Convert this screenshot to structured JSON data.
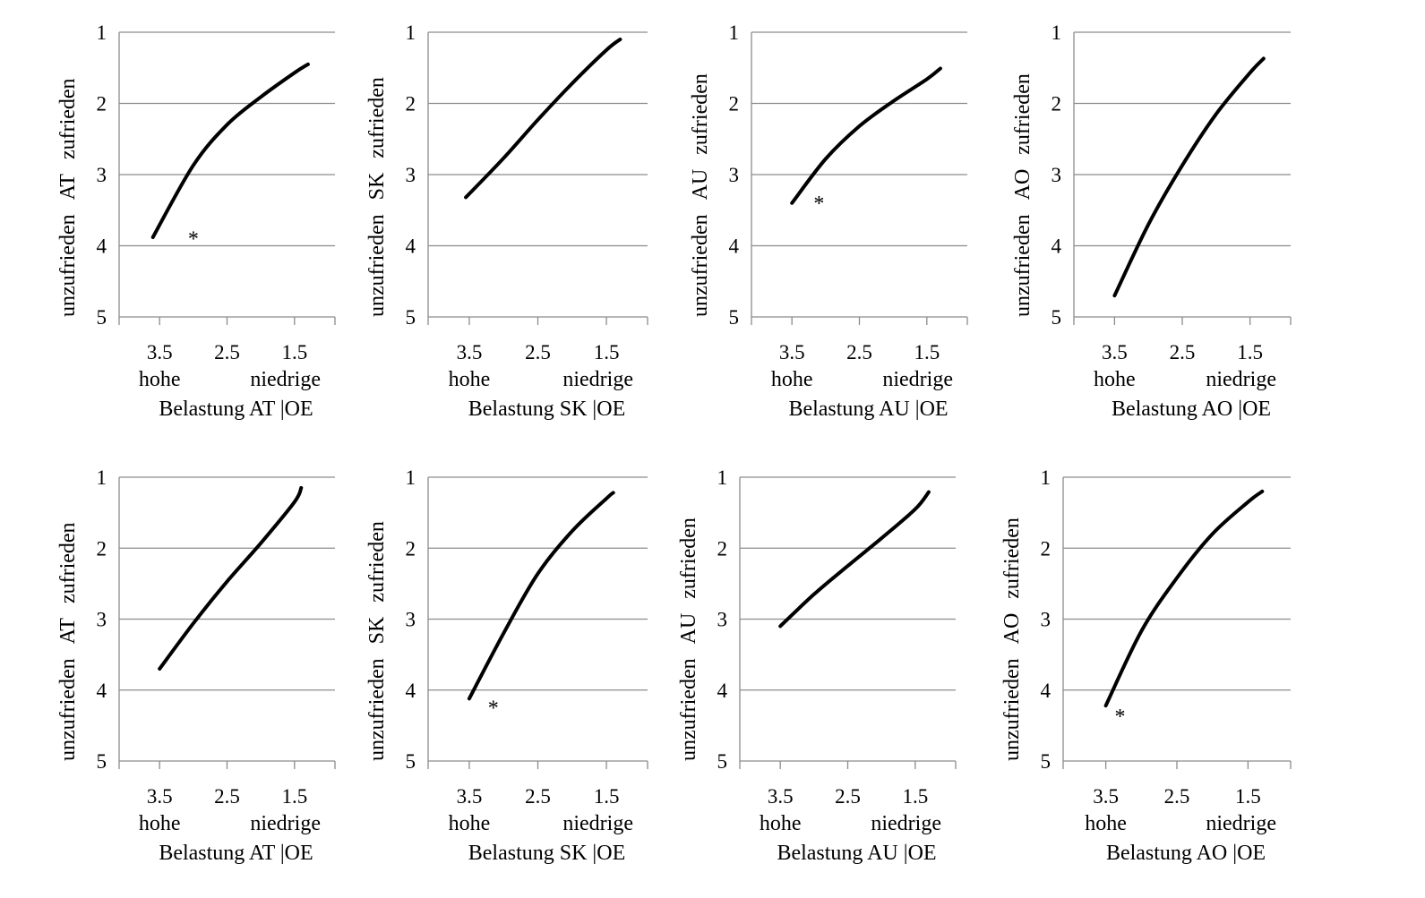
{
  "chart_data": [
    {
      "type": "line",
      "x": [
        3.6,
        3.0,
        2.5,
        2.0,
        1.5,
        1.3
      ],
      "y": [
        3.88,
        2.87,
        2.3,
        1.91,
        1.57,
        1.45
      ],
      "xticks": [
        "3.5",
        "2.5",
        "1.5"
      ],
      "xtick_values": [
        3.5,
        2.5,
        1.5
      ],
      "xlim": [
        4.1,
        0.9
      ],
      "yticks": [
        "1",
        "2",
        "3",
        "4",
        "5"
      ],
      "ylim": [
        1,
        5
      ],
      "y_inverted": true,
      "x_reversed": true,
      "x_end_left": "hohe",
      "x_end_right": "niedrige",
      "xlabel": "Belastung AT |OE",
      "ylabel_low": "unzufrieden",
      "ylabel_mid": "AT",
      "ylabel_high": "zufrieden",
      "annotation": {
        "text": "*",
        "x": 3.0,
        "y": 3.85
      }
    },
    {
      "type": "line",
      "x": [
        3.55,
        3.0,
        2.5,
        2.0,
        1.5,
        1.3
      ],
      "y": [
        3.32,
        2.77,
        2.23,
        1.72,
        1.25,
        1.1
      ],
      "xticks": [
        "3.5",
        "2.5",
        "1.5"
      ],
      "xtick_values": [
        3.5,
        2.5,
        1.5
      ],
      "xlim": [
        4.1,
        0.9
      ],
      "yticks": [
        "1",
        "2",
        "3",
        "4",
        "5"
      ],
      "ylim": [
        1,
        5
      ],
      "y_inverted": true,
      "x_reversed": true,
      "x_end_left": "hohe",
      "x_end_right": "niedrige",
      "xlabel": "Belastung SK |OE",
      "ylabel_low": "unzufrieden",
      "ylabel_mid": "SK",
      "ylabel_high": "zufrieden",
      "annotation": null
    },
    {
      "type": "line",
      "x": [
        3.5,
        3.0,
        2.5,
        2.0,
        1.5,
        1.3
      ],
      "y": [
        3.4,
        2.78,
        2.32,
        1.97,
        1.66,
        1.51
      ],
      "xticks": [
        "3.5",
        "2.5",
        "1.5"
      ],
      "xtick_values": [
        3.5,
        2.5,
        1.5
      ],
      "xlim": [
        4.1,
        0.9
      ],
      "yticks": [
        "1",
        "2",
        "3",
        "4",
        "5"
      ],
      "ylim": [
        1,
        5
      ],
      "y_inverted": true,
      "x_reversed": true,
      "x_end_left": "hohe",
      "x_end_right": "niedrige",
      "xlabel": "Belastung AU |OE",
      "ylabel_low": "unzufrieden",
      "ylabel_mid": "AU",
      "ylabel_high": "zufrieden",
      "annotation": {
        "text": "*",
        "x": 3.1,
        "y": 3.35
      }
    },
    {
      "type": "line",
      "x": [
        3.5,
        3.0,
        2.5,
        2.0,
        1.5,
        1.3
      ],
      "y": [
        4.7,
        3.7,
        2.87,
        2.15,
        1.57,
        1.37
      ],
      "xticks": [
        "3.5",
        "2.5",
        "1.5"
      ],
      "xtick_values": [
        3.5,
        2.5,
        1.5
      ],
      "xlim": [
        4.1,
        0.9
      ],
      "yticks": [
        "1",
        "2",
        "3",
        "4",
        "5"
      ],
      "ylim": [
        1,
        5
      ],
      "y_inverted": true,
      "x_reversed": true,
      "x_end_left": "hohe",
      "x_end_right": "niedrige",
      "xlabel": "Belastung AO |OE",
      "ylabel_low": "unzufrieden",
      "ylabel_mid": "AO",
      "ylabel_high": "zufrieden",
      "annotation": null
    },
    {
      "type": "line",
      "x": [
        3.5,
        3.0,
        2.5,
        2.0,
        1.5,
        1.4
      ],
      "y": [
        3.7,
        3.06,
        2.47,
        1.93,
        1.35,
        1.15
      ],
      "xticks": [
        "3.5",
        "2.5",
        "1.5"
      ],
      "xtick_values": [
        3.5,
        2.5,
        1.5
      ],
      "xlim": [
        4.1,
        0.9
      ],
      "yticks": [
        "1",
        "2",
        "3",
        "4",
        "5"
      ],
      "ylim": [
        1,
        5
      ],
      "y_inverted": true,
      "x_reversed": true,
      "x_end_left": "hohe",
      "x_end_right": "niedrige",
      "xlabel": "Belastung AT |OE",
      "ylabel_low": "unzufrieden",
      "ylabel_mid": "AT",
      "ylabel_high": "zufrieden",
      "annotation": null
    },
    {
      "type": "line",
      "x": [
        3.5,
        3.0,
        2.5,
        2.0,
        1.5,
        1.4
      ],
      "y": [
        4.12,
        3.2,
        2.36,
        1.76,
        1.3,
        1.22
      ],
      "xticks": [
        "3.5",
        "2.5",
        "1.5"
      ],
      "xtick_values": [
        3.5,
        2.5,
        1.5
      ],
      "xlim": [
        4.1,
        0.9
      ],
      "yticks": [
        "1",
        "2",
        "3",
        "4",
        "5"
      ],
      "ylim": [
        1,
        5
      ],
      "y_inverted": true,
      "x_reversed": true,
      "x_end_left": "hohe",
      "x_end_right": "niedrige",
      "xlabel": "Belastung SK |OE",
      "ylabel_low": "unzufrieden",
      "ylabel_mid": "SK",
      "ylabel_high": "zufrieden",
      "annotation": {
        "text": "*",
        "x": 3.15,
        "y": 4.2
      }
    },
    {
      "type": "line",
      "x": [
        3.5,
        3.0,
        2.5,
        2.0,
        1.5,
        1.3
      ],
      "y": [
        3.1,
        2.65,
        2.25,
        1.86,
        1.45,
        1.21
      ],
      "xticks": [
        "3.5",
        "2.5",
        "1.5"
      ],
      "xtick_values": [
        3.5,
        2.5,
        1.5
      ],
      "xlim": [
        4.1,
        0.9
      ],
      "yticks": [
        "1",
        "2",
        "3",
        "4",
        "5"
      ],
      "ylim": [
        1,
        5
      ],
      "y_inverted": true,
      "x_reversed": true,
      "x_end_left": "hohe",
      "x_end_right": "niedrige",
      "xlabel": "Belastung AU |OE",
      "ylabel_low": "unzufrieden",
      "ylabel_mid": "AU",
      "ylabel_high": "zufrieden",
      "annotation": null
    },
    {
      "type": "line",
      "x": [
        3.5,
        3.0,
        2.5,
        2.0,
        1.5,
        1.3
      ],
      "y": [
        4.22,
        3.17,
        2.42,
        1.8,
        1.35,
        1.2
      ],
      "xticks": [
        "3.5",
        "2.5",
        "1.5"
      ],
      "xtick_values": [
        3.5,
        2.5,
        1.5
      ],
      "xlim": [
        4.1,
        0.9
      ],
      "yticks": [
        "1",
        "2",
        "3",
        "4",
        "5"
      ],
      "ylim": [
        1,
        5
      ],
      "y_inverted": true,
      "x_reversed": true,
      "x_end_left": "hohe",
      "x_end_right": "niedrige",
      "xlabel": "Belastung AO |OE",
      "ylabel_low": "unzufrieden",
      "ylabel_mid": "AO",
      "ylabel_high": "zufrieden",
      "annotation": {
        "text": "*",
        "x": 3.3,
        "y": 4.32
      }
    }
  ]
}
